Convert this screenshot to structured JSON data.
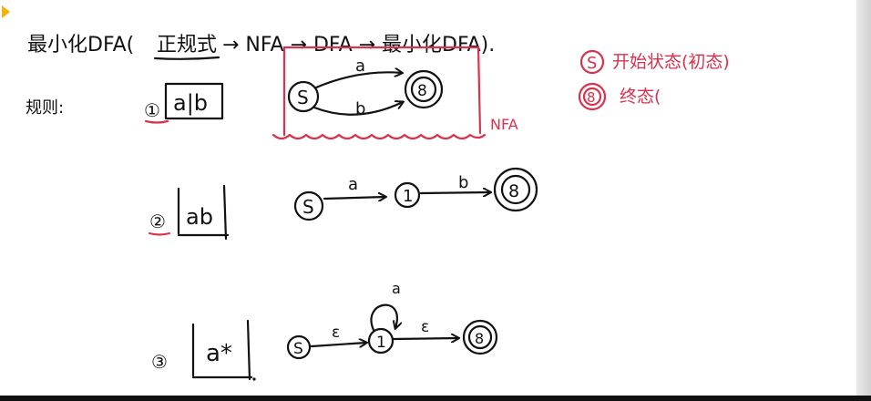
{
  "title": {
    "part1": "最小化DFA(",
    "part2": "正规式",
    "part3": "→ NFA → DFA → 最小化DFA)."
  },
  "rules_label": "规则:",
  "legend": {
    "start_symbol": "S",
    "start_text": "开始状态(初态)",
    "final_symbol": "8",
    "final_text": "终态("
  },
  "rule1": {
    "number": "①",
    "expression": "a|b",
    "start_label": "S",
    "final_label": "8",
    "edge_top": "a",
    "edge_bottom": "b",
    "box_label": "NFA"
  },
  "rule2": {
    "number": "②",
    "expression": "ab",
    "start_label": "S",
    "mid_label": "1",
    "final_label": "8",
    "edge1": "a",
    "edge2": "b"
  },
  "rule3": {
    "number": "③",
    "expression": "a*",
    "start_label": "S",
    "mid_label": "1",
    "final_label": "8",
    "edge1": "ε",
    "loop": "a",
    "edge2": "ε"
  },
  "colors": {
    "ink": "#111111",
    "accent": "#d8324f",
    "marker": "#f2b400"
  }
}
